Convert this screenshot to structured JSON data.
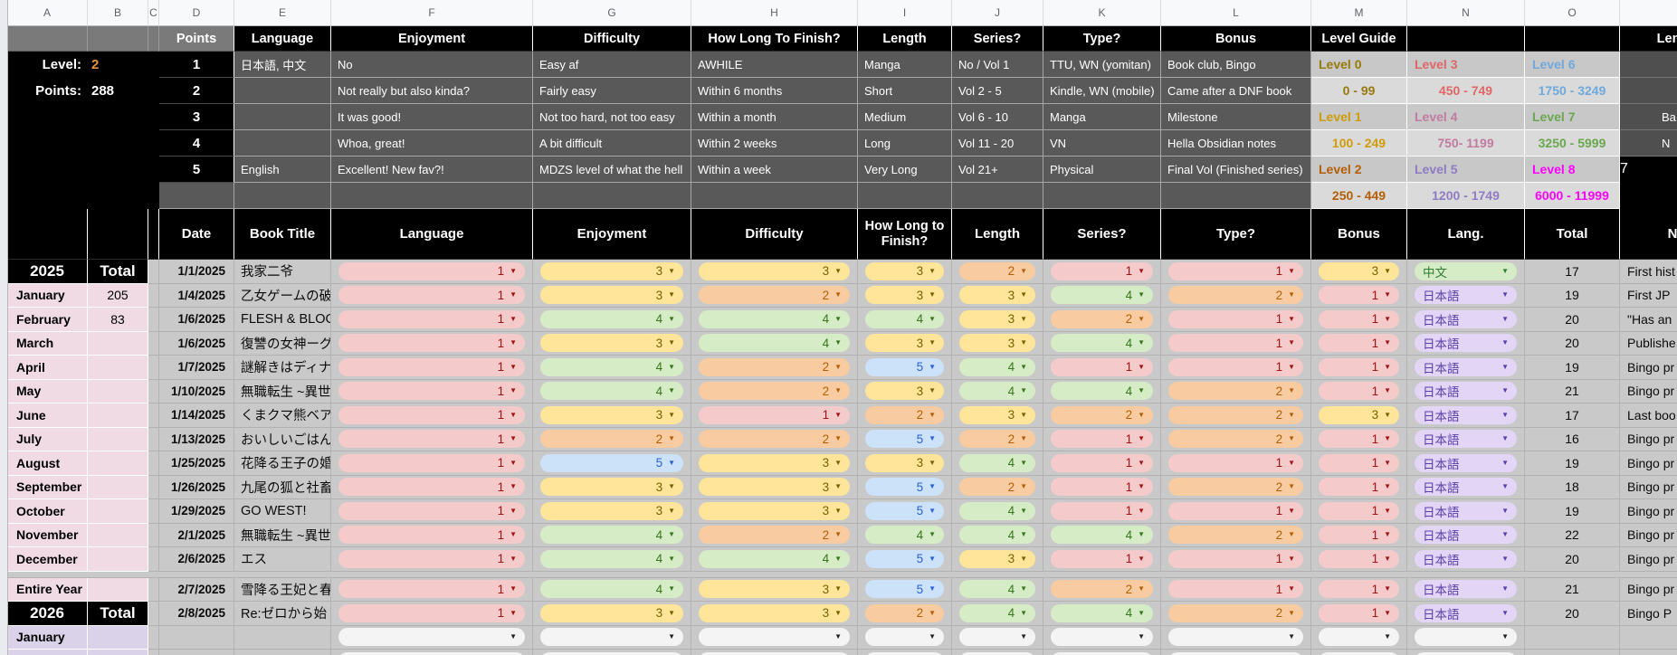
{
  "colors": {
    "pill_1": "#f5caca",
    "pill_1_text": "#a01414",
    "pill_2": "#f8cba0",
    "pill_2_text": "#b45f06",
    "pill_3": "#ffe599",
    "pill_3_text": "#7a6000",
    "pill_4": "#d6ecc6",
    "pill_4_text": "#38761d",
    "pill_5": "#cbe2f8",
    "pill_5_text": "#2b5fd3",
    "lang_jp_pill": "#e3d5f6",
    "lang_jp_text": "#5b3fa8",
    "lang_zh_pill": "#d6ecc6",
    "lang_zh_text": "#2f7d33",
    "sidebar_2025": "#f0dbe5",
    "sidebar_2026": "#d9d2e9",
    "legend_bg": "#595959",
    "header_bg": "#000000",
    "data_bg": "#c9c9c9",
    "level_value_accent": "#e69138"
  },
  "column_letters": [
    "A",
    "B",
    "C",
    "D",
    "E",
    "F",
    "G",
    "H",
    "I",
    "J",
    "K",
    "L",
    "M",
    "N",
    "O",
    ""
  ],
  "stats": {
    "level_label": "Level:",
    "level_value": "2",
    "points_label": "Points:",
    "points_value": "288"
  },
  "legend": {
    "points_header": "Points",
    "column_headers": [
      "Language",
      "Enjoyment",
      "Difficulty",
      "How Long To Finish?",
      "Length",
      "Series?",
      "Type?",
      "Bonus"
    ],
    "rows": [
      {
        "points": "1",
        "language": "日本語, 中文",
        "enjoyment": "No",
        "difficulty": "Easy af",
        "how_long": "AWHILE",
        "length": "Manga",
        "series": "No / Vol 1",
        "type": "TTU, WN (yomitan)",
        "bonus": "Book club, Bingo"
      },
      {
        "points": "2",
        "language": "",
        "enjoyment": "Not really but also kinda?",
        "difficulty": "Fairly easy",
        "how_long": "Within 6 months",
        "length": "Short",
        "series": "Vol 2 - 5",
        "type": "Kindle, WN (mobile)",
        "bonus": "Came after a DNF book"
      },
      {
        "points": "3",
        "language": "",
        "enjoyment": "It was good!",
        "difficulty": "Not too hard, not too easy",
        "how_long": "Within a month",
        "length": "Medium",
        "series": "Vol 6 - 10",
        "type": "Manga",
        "bonus": "Milestone"
      },
      {
        "points": "4",
        "language": "",
        "enjoyment": "Whoa, great!",
        "difficulty": "A bit difficult",
        "how_long": "Within 2 weeks",
        "length": "Long",
        "series": "Vol 11 - 20",
        "type": "VN",
        "bonus": "Hella Obsidian notes"
      },
      {
        "points": "5",
        "language": "English",
        "enjoyment": "Excellent! New fav?!",
        "difficulty": "MDZS level of what the hell",
        "how_long": "Within a week",
        "length": "Very Long",
        "series": "Vol 21+",
        "type": "Physical",
        "bonus": "Final Vol (Finished series)"
      }
    ]
  },
  "level_guide": {
    "title": "Level Guide",
    "levels": [
      {
        "label": "Level 0",
        "range": "0 - 99",
        "color": "#98790b"
      },
      {
        "label": "Level 1",
        "range": "100 - 249",
        "color": "#cf9b08"
      },
      {
        "label": "Level 2",
        "range": "250 - 449",
        "color": "#b45f06"
      },
      {
        "label": "Level 3",
        "range": "450 - 749",
        "color": "#e06666"
      },
      {
        "label": "Level 4",
        "range": "750- 1199",
        "color": "#c27ba0"
      },
      {
        "label": "Level 5",
        "range": "1200 - 1749",
        "color": "#8e7cc3"
      },
      {
        "label": "Level 6",
        "range": "1750 - 3249",
        "color": "#6fa8dc"
      },
      {
        "label": "Level 7",
        "range": "3250 - 5999",
        "color": "#6aa84f"
      },
      {
        "label": "Level 8",
        "range": "6000 - 11999",
        "color": "#ff00ff"
      }
    ]
  },
  "right_edge_table": {
    "header_fragment": "Leng",
    "value_fragments": [
      "",
      "Ba",
      "N",
      "7",
      ""
    ]
  },
  "main_table": {
    "headers": {
      "date": "Date",
      "title": "Book Title",
      "language": "Language",
      "enjoyment": "Enjoyment",
      "difficulty": "Difficulty",
      "how_long": "How Long to Finish?",
      "length": "Length",
      "series": "Series?",
      "type": "Type?",
      "bonus": "Bonus",
      "lang": "Lang.",
      "total": "Total",
      "notes": "N"
    },
    "books": [
      {
        "date": "1/1/2025",
        "title": "我家二爷",
        "scores": [
          1,
          3,
          3,
          3,
          2,
          1,
          1,
          3
        ],
        "lang": "中文",
        "total": "17",
        "note": "First hist"
      },
      {
        "date": "1/4/2025",
        "title": "乙女ゲームの破",
        "scores": [
          1,
          3,
          2,
          3,
          3,
          4,
          2,
          1
        ],
        "lang": "日本語",
        "total": "19",
        "note": "First JP"
      },
      {
        "date": "1/6/2025",
        "title": "FLESH & BLOO",
        "scores": [
          1,
          4,
          4,
          4,
          3,
          2,
          1,
          1
        ],
        "lang": "日本語",
        "total": "20",
        "note": "\"Has an"
      },
      {
        "date": "1/6/2025",
        "title": "復讐の女神ーグ",
        "scores": [
          1,
          3,
          4,
          3,
          3,
          4,
          1,
          1
        ],
        "lang": "日本語",
        "total": "20",
        "note": "Publishe"
      },
      {
        "date": "1/7/2025",
        "title": "謎解きはディナ",
        "scores": [
          1,
          4,
          2,
          5,
          4,
          1,
          1,
          1
        ],
        "lang": "日本語",
        "total": "19",
        "note": "Bingo pr"
      },
      {
        "date": "1/10/2025",
        "title": "無職転生 ~異世",
        "scores": [
          1,
          4,
          2,
          3,
          4,
          4,
          2,
          1
        ],
        "lang": "日本語",
        "total": "21",
        "note": "Bingo pr"
      },
      {
        "date": "1/14/2025",
        "title": "くまクマ熊ベア",
        "scores": [
          1,
          3,
          1,
          2,
          3,
          2,
          2,
          3
        ],
        "lang": "日本語",
        "total": "17",
        "note": "Last boo"
      },
      {
        "date": "1/13/2025",
        "title": "おいしいごはん",
        "scores": [
          1,
          2,
          2,
          5,
          2,
          1,
          2,
          1
        ],
        "lang": "日本語",
        "total": "16",
        "note": "Bingo pr"
      },
      {
        "date": "1/25/2025",
        "title": "花降る王子の婚",
        "scores": [
          1,
          5,
          3,
          3,
          4,
          1,
          1,
          1
        ],
        "lang": "日本語",
        "total": "19",
        "note": "Bingo pr"
      },
      {
        "date": "1/26/2025",
        "title": "九尾の狐と社畜",
        "scores": [
          1,
          3,
          3,
          5,
          2,
          1,
          2,
          1
        ],
        "lang": "日本語",
        "total": "18",
        "note": "Bingo pr"
      },
      {
        "date": "1/29/2025",
        "title": "GO WEST!",
        "scores": [
          1,
          3,
          3,
          5,
          4,
          1,
          1,
          1
        ],
        "lang": "日本語",
        "total": "19",
        "note": "Bingo pr"
      },
      {
        "date": "2/1/2025",
        "title": "無職転生 ~異世",
        "scores": [
          1,
          4,
          2,
          4,
          4,
          4,
          2,
          1
        ],
        "lang": "日本語",
        "total": "22",
        "note": "Bingo pr"
      },
      {
        "date": "2/6/2025",
        "title": "エス",
        "scores": [
          1,
          4,
          4,
          5,
          3,
          1,
          1,
          1
        ],
        "lang": "日本語",
        "total": "20",
        "note": "Bingo pr"
      },
      {
        "date": "2/7/2025",
        "title": "雪降る王妃と春",
        "scores": [
          1,
          4,
          3,
          5,
          4,
          2,
          1,
          1
        ],
        "lang": "日本語",
        "total": "21",
        "note": "Bingo pr"
      },
      {
        "date": "2/8/2025",
        "title": "Re:ゼロから始",
        "scores": [
          1,
          3,
          3,
          2,
          4,
          4,
          2,
          1
        ],
        "lang": "日本語",
        "total": "20",
        "note": "Bingo P"
      }
    ],
    "empty_row_count": 2
  },
  "sidebar": {
    "year_2025": {
      "year": "2025",
      "total_label": "Total",
      "months": [
        {
          "name": "January",
          "total": "205"
        },
        {
          "name": "February",
          "total": "83"
        },
        {
          "name": "March",
          "total": ""
        },
        {
          "name": "April",
          "total": ""
        },
        {
          "name": "May",
          "total": ""
        },
        {
          "name": "June",
          "total": ""
        },
        {
          "name": "July",
          "total": ""
        },
        {
          "name": "August",
          "total": ""
        },
        {
          "name": "September",
          "total": ""
        },
        {
          "name": "October",
          "total": ""
        },
        {
          "name": "November",
          "total": ""
        },
        {
          "name": "December",
          "total": ""
        },
        {
          "name": "Entire Year",
          "total": ""
        }
      ]
    },
    "year_2026": {
      "year": "2026",
      "total_label": "Total",
      "months": [
        {
          "name": "January",
          "total": ""
        },
        {
          "name": "February",
          "total": ""
        }
      ]
    }
  }
}
